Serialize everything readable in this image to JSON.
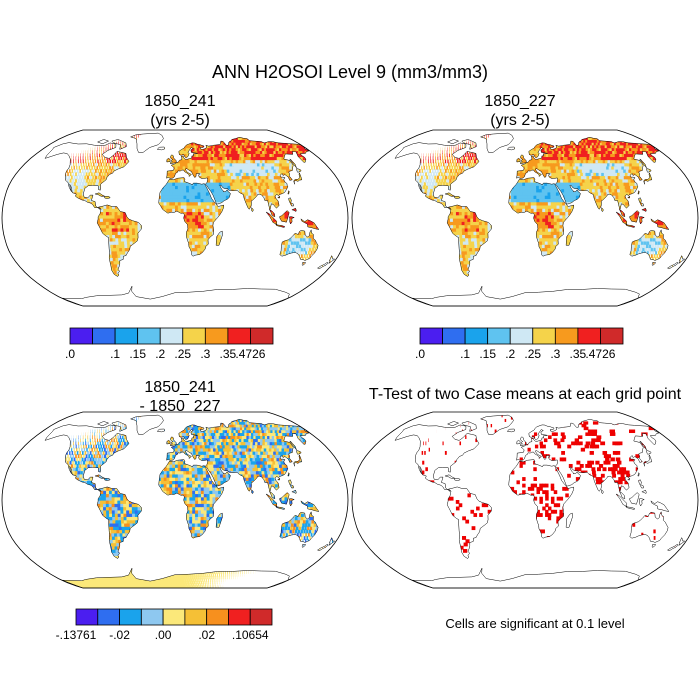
{
  "figure": {
    "title": "ANN H2OSOI Level 9 (mm3/mm3)",
    "footnote": "Cells are significant at 0.1 level"
  },
  "chart_data": [
    {
      "type": "heatmap",
      "projection": "robinson",
      "title_lines": [
        "1850_241",
        "(yrs 2-5)"
      ],
      "variable": "H2OSOI level 9",
      "units": "mm3/mm3",
      "colorbar": {
        "tick_labels": [
          ".0",
          ".1",
          ".15",
          ".2",
          ".25",
          ".3",
          ".35",
          ".4726"
        ],
        "bounds": [
          0.0,
          0.05,
          0.1,
          0.15,
          0.2,
          0.25,
          0.3,
          0.35,
          0.4726
        ],
        "colors": [
          "#4b1ef0",
          "#2f6ef0",
          "#1aa3ec",
          "#5fc3f0",
          "#cfe8f4",
          "#f5d34a",
          "#f79a1e",
          "#f02020",
          "#d02a2a"
        ]
      }
    },
    {
      "type": "heatmap",
      "projection": "robinson",
      "title_lines": [
        "1850_227",
        "(yrs 2-5)"
      ],
      "variable": "H2OSOI level 9",
      "units": "mm3/mm3",
      "colorbar": {
        "tick_labels": [
          ".0",
          ".1",
          ".15",
          ".2",
          ".25",
          ".3",
          ".35",
          ".4726"
        ],
        "bounds": [
          0.0,
          0.05,
          0.1,
          0.15,
          0.2,
          0.25,
          0.3,
          0.35,
          0.4726
        ],
        "colors": [
          "#4b1ef0",
          "#2f6ef0",
          "#1aa3ec",
          "#5fc3f0",
          "#cfe8f4",
          "#f5d34a",
          "#f79a1e",
          "#f02020",
          "#d02a2a"
        ]
      }
    },
    {
      "type": "heatmap",
      "projection": "robinson",
      "title_lines": [
        "1850_241",
        "- 1850_227"
      ],
      "variable": "H2OSOI level 9 difference",
      "units": "mm3/mm3",
      "colorbar": {
        "tick_labels": [
          "-.13761",
          "-.02",
          ".00",
          ".02",
          ".10654"
        ],
        "bounds": [
          -0.13761,
          -0.04,
          -0.02,
          -0.01,
          0.0,
          0.01,
          0.02,
          0.04,
          0.10654
        ],
        "colors": [
          "#4b1ef0",
          "#2f6ef0",
          "#1aa3ec",
          "#8ec8f0",
          "#fbe87a",
          "#f5c036",
          "#f7901e",
          "#f02020",
          "#d02a2a"
        ]
      }
    },
    {
      "type": "heatmap",
      "projection": "robinson",
      "title_lines": [
        "T-Test of two Case means at each grid point"
      ],
      "significance_level": 0.1,
      "marker_color": "#ee0000"
    }
  ]
}
